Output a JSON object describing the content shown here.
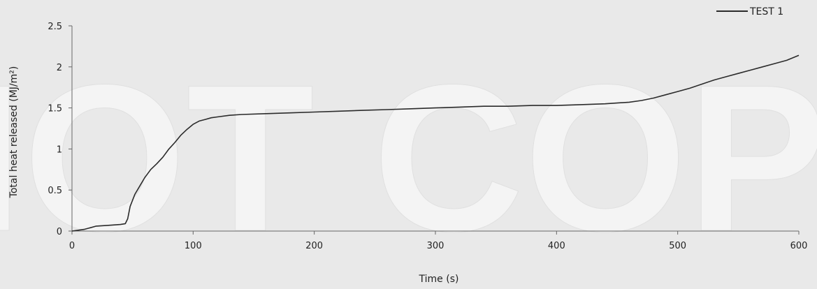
{
  "chart_data": {
    "type": "line",
    "xlabel": "Time (s)",
    "ylabel": "Total heat released (MJ/m²)",
    "xlim": [
      0,
      600
    ],
    "ylim": [
      0,
      2.5
    ],
    "x_ticks": [
      "0",
      "100",
      "200",
      "300",
      "400",
      "500",
      "600"
    ],
    "y_ticks": [
      "0",
      "0.5",
      "1",
      "1.5",
      "2",
      "2.5"
    ],
    "grid": false,
    "legend_position": "top-right",
    "series": [
      {
        "name": "TEST 1",
        "color": "#2b2b2b",
        "x": [
          0,
          5,
          10,
          15,
          20,
          30,
          40,
          44,
          46,
          48,
          52,
          56,
          60,
          65,
          70,
          75,
          80,
          85,
          90,
          95,
          100,
          105,
          110,
          115,
          120,
          130,
          140,
          160,
          180,
          200,
          220,
          240,
          260,
          280,
          300,
          320,
          340,
          360,
          380,
          400,
          420,
          440,
          460,
          470,
          480,
          490,
          500,
          510,
          520,
          530,
          540,
          550,
          560,
          570,
          580,
          590,
          600
        ],
        "y": [
          0,
          0.01,
          0.02,
          0.04,
          0.06,
          0.07,
          0.08,
          0.09,
          0.15,
          0.3,
          0.45,
          0.55,
          0.65,
          0.75,
          0.82,
          0.9,
          1.0,
          1.08,
          1.17,
          1.24,
          1.3,
          1.34,
          1.36,
          1.38,
          1.39,
          1.41,
          1.42,
          1.43,
          1.44,
          1.45,
          1.46,
          1.47,
          1.48,
          1.49,
          1.5,
          1.51,
          1.52,
          1.52,
          1.53,
          1.53,
          1.54,
          1.55,
          1.57,
          1.59,
          1.62,
          1.66,
          1.7,
          1.74,
          1.79,
          1.84,
          1.88,
          1.92,
          1.96,
          2.0,
          2.04,
          2.08,
          2.14
        ]
      }
    ]
  },
  "watermark": {
    "text": "NOT COPY"
  }
}
